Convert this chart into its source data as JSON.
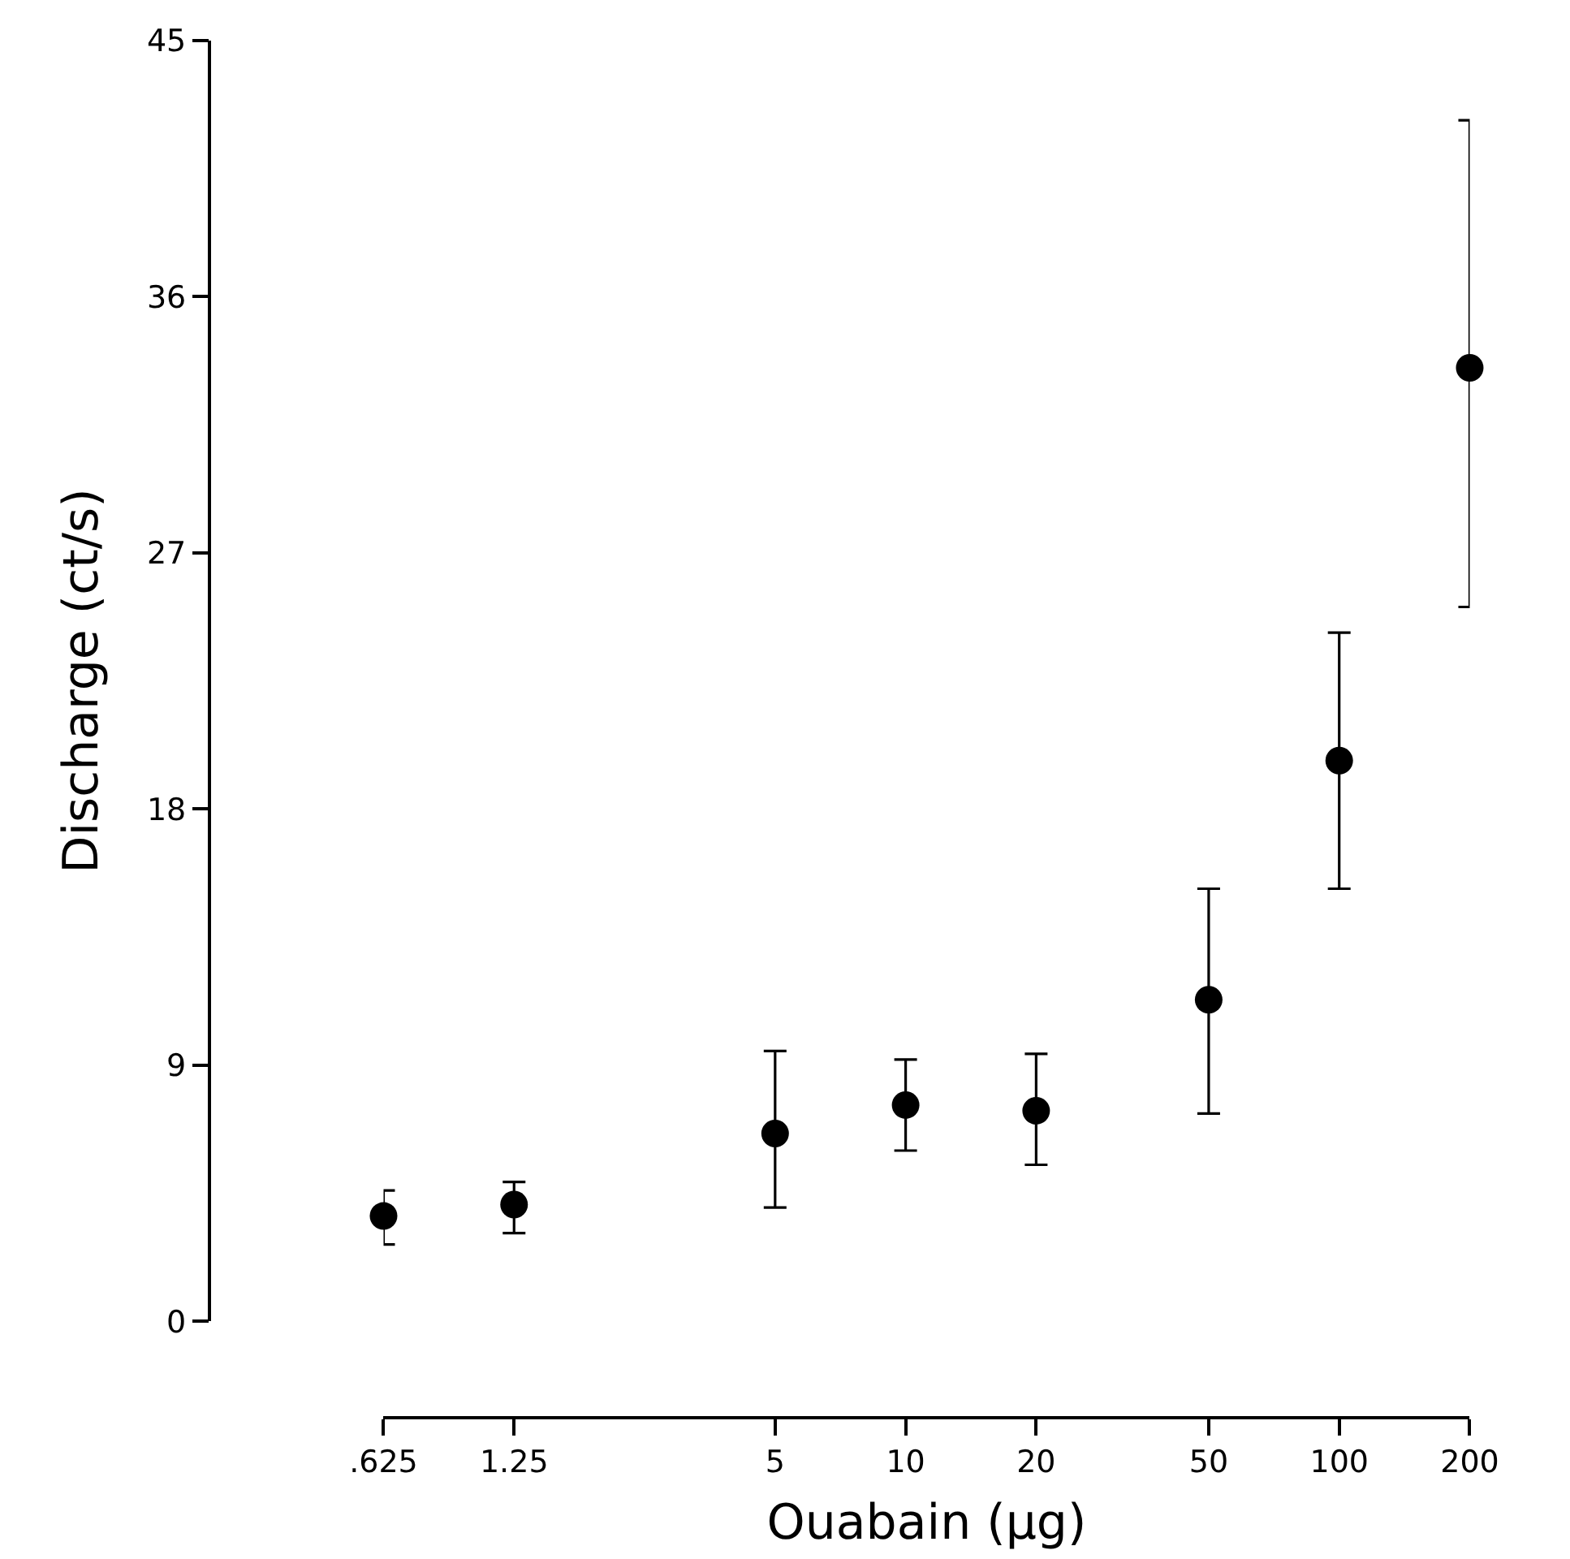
{
  "chart_data": {
    "type": "scatter",
    "xlabel": "Ouabain (µg)",
    "ylabel": "Discharge (ct/s)",
    "x": [
      0.625,
      1.25,
      5,
      10,
      20,
      50,
      100,
      200
    ],
    "series": [
      {
        "color": "#000000",
        "values": [
          3.7,
          4.1,
          6.6,
          7.6,
          7.4,
          11.3,
          19.7,
          33.5
        ],
        "errors": [
          [
            2.7,
            4.6
          ],
          [
            3.1,
            4.9
          ],
          [
            4.0,
            9.5
          ],
          [
            6.0,
            9.2
          ],
          [
            5.5,
            9.4
          ],
          [
            7.3,
            15.2
          ],
          [
            15.2,
            24.2
          ],
          [
            25.1,
            42.2
          ]
        ]
      }
    ],
    "log": "x",
    "marker": "circle",
    "xlim": [
      0.625,
      200
    ],
    "xticks": [
      {
        "value": 0.625,
        "label": ".625"
      },
      1.25,
      5,
      10,
      20,
      50,
      100,
      200
    ],
    "ylim": [
      0,
      45
    ],
    "yticks": [
      0,
      9,
      18,
      27,
      36,
      45
    ]
  }
}
